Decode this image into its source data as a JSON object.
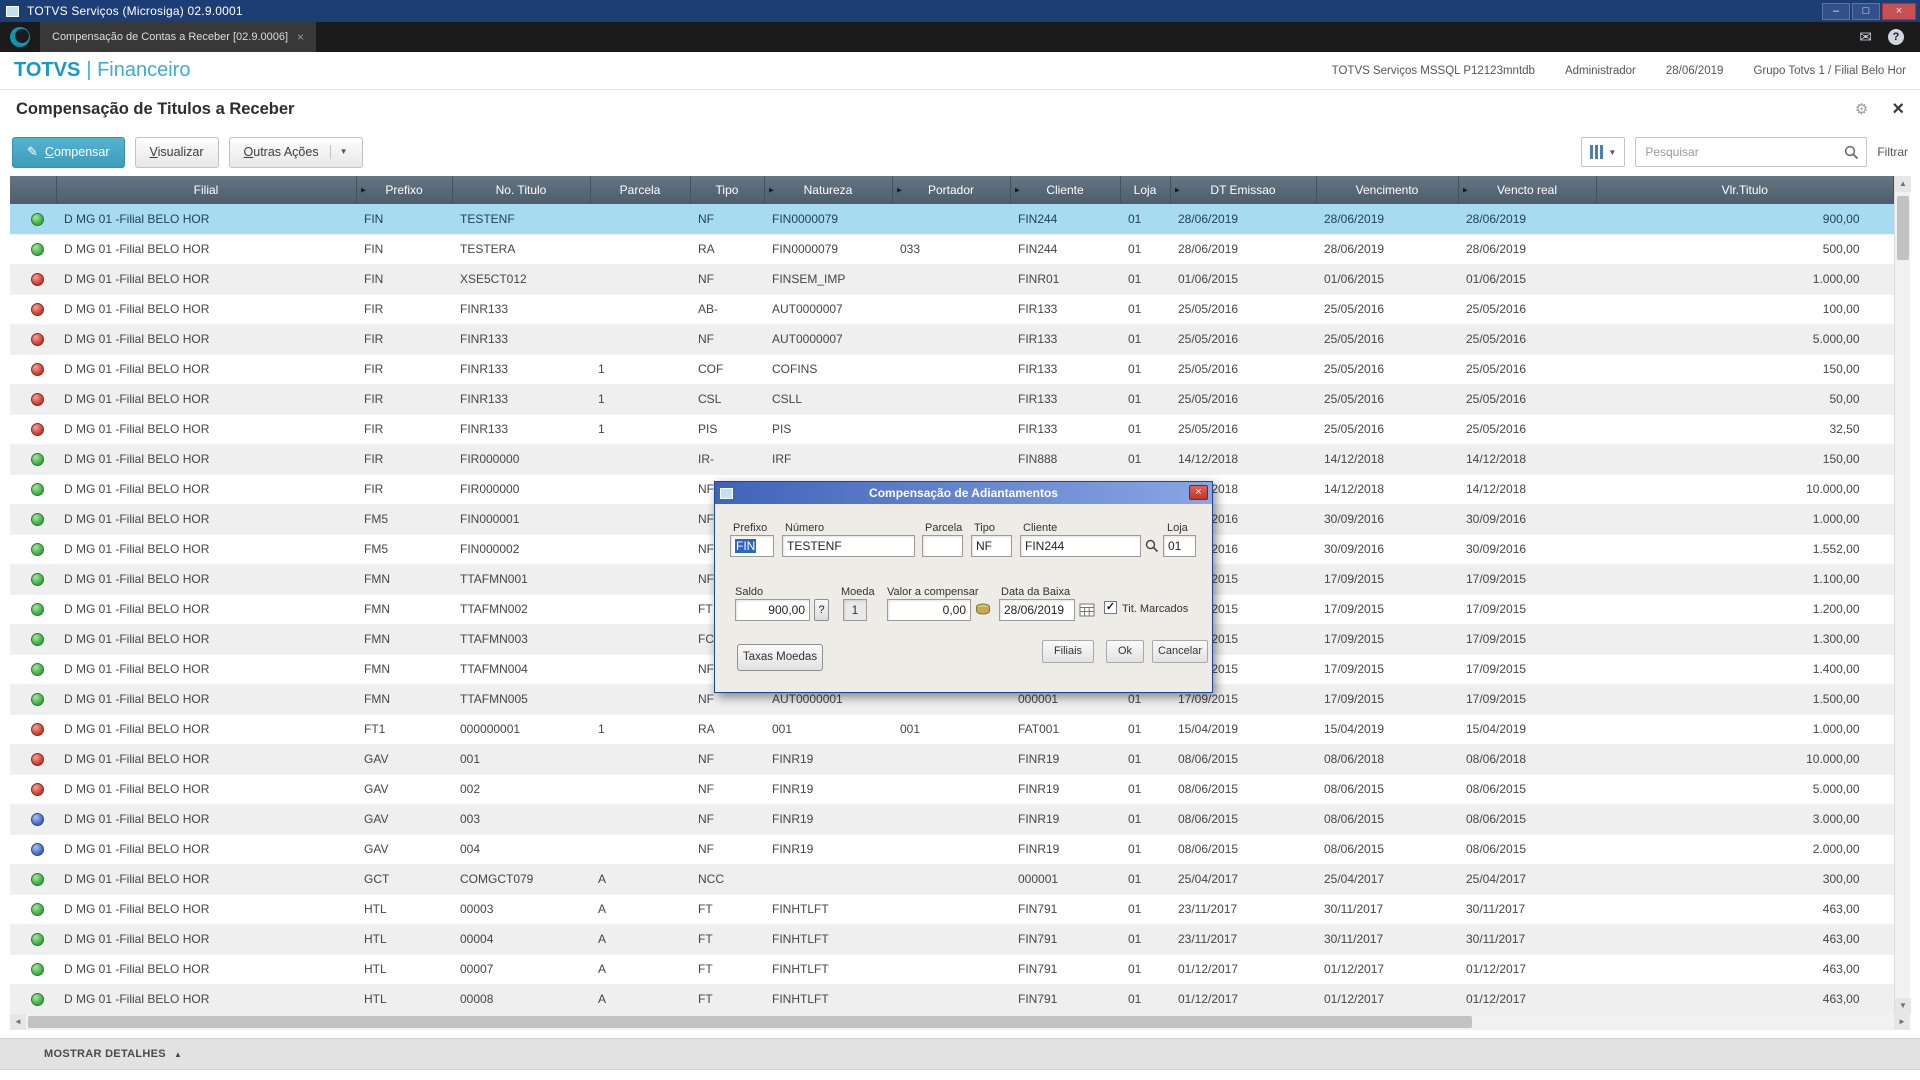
{
  "window": {
    "title": "TOTVS Serviços (Microsiga) 02.9.0001",
    "minimize": "–",
    "maximize": "□",
    "close": "×"
  },
  "tabbar": {
    "tab_label": "Compensação de Contas a Receber [02.9.0006]",
    "tab_close": "×"
  },
  "app_header": {
    "brand_main": "TOTVS",
    "brand_sub": "| Financeiro",
    "environment": "TOTVS Serviços MSSQL P12123mntdb",
    "user": "Administrador",
    "date": "28/06/2019",
    "branch": "Grupo Totvs 1 / Filial Belo Hor"
  },
  "page": {
    "title": "Compensação de Titulos a Receber"
  },
  "toolbar": {
    "compensar": "Compensar",
    "visualizar": "Visualizar",
    "outras_acoes": "Outras Ações",
    "search_placeholder": "Pesquisar",
    "filtrar": "Filtrar"
  },
  "icons": {
    "pencil": "✎",
    "caret": "▼",
    "header_arrow": "►",
    "up": "▲",
    "down": "▼",
    "left": "◄",
    "right": "►",
    "check": "✓",
    "gear": "⚙",
    "mail": "✉",
    "help": "?",
    "collapse": "▲",
    "question": "?"
  },
  "table": {
    "column_ids": [
      "status",
      "filial",
      "prefixo",
      "no-titulo",
      "parcela",
      "tipo",
      "natureza",
      "portador",
      "cliente",
      "loja",
      "dt-emissao",
      "vencimento",
      "vencto-real",
      "vlr-titulo"
    ],
    "columns": [
      {
        "label": "",
        "arrow": false
      },
      {
        "label": "Filial",
        "arrow": false
      },
      {
        "label": "Prefixo",
        "arrow": true
      },
      {
        "label": "No. Titulo",
        "arrow": false
      },
      {
        "label": "Parcela",
        "arrow": false
      },
      {
        "label": "Tipo",
        "arrow": false
      },
      {
        "label": "Natureza",
        "arrow": true
      },
      {
        "label": "Portador",
        "arrow": true
      },
      {
        "label": "Cliente",
        "arrow": true
      },
      {
        "label": "Loja",
        "arrow": false
      },
      {
        "label": "DT Emissao",
        "arrow": true
      },
      {
        "label": "Vencimento",
        "arrow": false
      },
      {
        "label": "Vencto real",
        "arrow": true
      },
      {
        "label": "Vlr.Titulo",
        "arrow": false
      }
    ],
    "rows": [
      {
        "status": "green",
        "selected": true,
        "cells": [
          "D MG 01 -Filial BELO HOR",
          "FIN",
          "TESTENF",
          "",
          "NF",
          "FIN0000079",
          "",
          "FIN244",
          "01",
          "28/06/2019",
          "28/06/2019",
          "28/06/2019",
          "900,00"
        ]
      },
      {
        "status": "green",
        "cells": [
          "D MG 01 -Filial BELO HOR",
          "FIN",
          "TESTERA",
          "",
          "RA",
          "FIN0000079",
          "033",
          "FIN244",
          "01",
          "28/06/2019",
          "28/06/2019",
          "28/06/2019",
          "500,00"
        ]
      },
      {
        "status": "red",
        "cells": [
          "D MG 01 -Filial BELO HOR",
          "FIN",
          "XSE5CT012",
          "",
          "NF",
          "FINSEM_IMP",
          "",
          "FINR01",
          "01",
          "01/06/2015",
          "01/06/2015",
          "01/06/2015",
          "1.000,00"
        ]
      },
      {
        "status": "red",
        "cells": [
          "D MG 01 -Filial BELO HOR",
          "FIR",
          "FINR133",
          "",
          "AB-",
          "AUT0000007",
          "",
          "FIR133",
          "01",
          "25/05/2016",
          "25/05/2016",
          "25/05/2016",
          "100,00"
        ]
      },
      {
        "status": "red",
        "cells": [
          "D MG 01 -Filial BELO HOR",
          "FIR",
          "FINR133",
          "",
          "NF",
          "AUT0000007",
          "",
          "FIR133",
          "01",
          "25/05/2016",
          "25/05/2016",
          "25/05/2016",
          "5.000,00"
        ]
      },
      {
        "status": "red",
        "cells": [
          "D MG 01 -Filial BELO HOR",
          "FIR",
          "FINR133",
          "1",
          "COF",
          "COFINS",
          "",
          "FIR133",
          "01",
          "25/05/2016",
          "25/05/2016",
          "25/05/2016",
          "150,00"
        ]
      },
      {
        "status": "red",
        "cells": [
          "D MG 01 -Filial BELO HOR",
          "FIR",
          "FINR133",
          "1",
          "CSL",
          "CSLL",
          "",
          "FIR133",
          "01",
          "25/05/2016",
          "25/05/2016",
          "25/05/2016",
          "50,00"
        ]
      },
      {
        "status": "red",
        "cells": [
          "D MG 01 -Filial BELO HOR",
          "FIR",
          "FINR133",
          "1",
          "PIS",
          "PIS",
          "",
          "FIR133",
          "01",
          "25/05/2016",
          "25/05/2016",
          "25/05/2016",
          "32,50"
        ]
      },
      {
        "status": "green",
        "cells": [
          "D MG 01 -Filial BELO HOR",
          "FIR",
          "FIR000000",
          "",
          "IR-",
          "IRF",
          "",
          "FIN888",
          "01",
          "14/12/2018",
          "14/12/2018",
          "14/12/2018",
          "150,00"
        ]
      },
      {
        "status": "green",
        "cells": [
          "D MG 01 -Filial BELO HOR",
          "FIR",
          "FIR000000",
          "",
          "NF",
          "",
          "",
          "",
          "",
          "14/12/2018",
          "14/12/2018",
          "14/12/2018",
          "10.000,00"
        ]
      },
      {
        "status": "green",
        "cells": [
          "D MG 01 -Filial BELO HOR",
          "FM5",
          "FIN000001",
          "",
          "NF",
          "",
          "",
          "",
          "",
          "30/09/2016",
          "30/09/2016",
          "30/09/2016",
          "1.000,00"
        ]
      },
      {
        "status": "green",
        "cells": [
          "D MG 01 -Filial BELO HOR",
          "FM5",
          "FIN000002",
          "",
          "NF",
          "",
          "",
          "",
          "",
          "30/09/2016",
          "30/09/2016",
          "30/09/2016",
          "1.552,00"
        ]
      },
      {
        "status": "green",
        "cells": [
          "D MG 01 -Filial BELO HOR",
          "FMN",
          "TTAFMN001",
          "",
          "NF",
          "",
          "",
          "",
          "",
          "17/09/2015",
          "17/09/2015",
          "17/09/2015",
          "1.100,00"
        ]
      },
      {
        "status": "green",
        "cells": [
          "D MG 01 -Filial BELO HOR",
          "FMN",
          "TTAFMN002",
          "",
          "FT",
          "",
          "",
          "",
          "",
          "17/09/2015",
          "17/09/2015",
          "17/09/2015",
          "1.200,00"
        ]
      },
      {
        "status": "green",
        "cells": [
          "D MG 01 -Filial BELO HOR",
          "FMN",
          "TTAFMN003",
          "",
          "FC",
          "",
          "",
          "",
          "",
          "17/09/2015",
          "17/09/2015",
          "17/09/2015",
          "1.300,00"
        ]
      },
      {
        "status": "green",
        "cells": [
          "D MG 01 -Filial BELO HOR",
          "FMN",
          "TTAFMN004",
          "",
          "NF",
          "",
          "",
          "",
          "",
          "17/09/2015",
          "17/09/2015",
          "17/09/2015",
          "1.400,00"
        ]
      },
      {
        "status": "green",
        "cells": [
          "D MG 01 -Filial BELO HOR",
          "FMN",
          "TTAFMN005",
          "",
          "NF",
          "AUT0000001",
          "",
          "000001",
          "01",
          "17/09/2015",
          "17/09/2015",
          "17/09/2015",
          "1.500,00"
        ]
      },
      {
        "status": "red",
        "cells": [
          "D MG 01 -Filial BELO HOR",
          "FT1",
          "000000001",
          "1",
          "RA",
          "001",
          "001",
          "FAT001",
          "01",
          "15/04/2019",
          "15/04/2019",
          "15/04/2019",
          "1.000,00"
        ]
      },
      {
        "status": "red",
        "cells": [
          "D MG 01 -Filial BELO HOR",
          "GAV",
          "001",
          "",
          "NF",
          "FINR19",
          "",
          "FINR19",
          "01",
          "08/06/2015",
          "08/06/2018",
          "08/06/2018",
          "10.000,00"
        ]
      },
      {
        "status": "red",
        "cells": [
          "D MG 01 -Filial BELO HOR",
          "GAV",
          "002",
          "",
          "NF",
          "FINR19",
          "",
          "FINR19",
          "01",
          "08/06/2015",
          "08/06/2015",
          "08/06/2015",
          "5.000,00"
        ]
      },
      {
        "status": "blue",
        "cells": [
          "D MG 01 -Filial BELO HOR",
          "GAV",
          "003",
          "",
          "NF",
          "FINR19",
          "",
          "FINR19",
          "01",
          "08/06/2015",
          "08/06/2015",
          "08/06/2015",
          "3.000,00"
        ]
      },
      {
        "status": "blue",
        "cells": [
          "D MG 01 -Filial BELO HOR",
          "GAV",
          "004",
          "",
          "NF",
          "FINR19",
          "",
          "FINR19",
          "01",
          "08/06/2015",
          "08/06/2015",
          "08/06/2015",
          "2.000,00"
        ]
      },
      {
        "status": "green",
        "cells": [
          "D MG 01 -Filial BELO HOR",
          "GCT",
          "COMGCT079",
          "A",
          "NCC",
          "",
          "",
          "000001",
          "01",
          "25/04/2017",
          "25/04/2017",
          "25/04/2017",
          "300,00"
        ]
      },
      {
        "status": "green",
        "cells": [
          "D MG 01 -Filial BELO HOR",
          "HTL",
          "00003",
          "A",
          "FT",
          "FINHTLFT",
          "",
          "FIN791",
          "01",
          "23/11/2017",
          "30/11/2017",
          "30/11/2017",
          "463,00"
        ]
      },
      {
        "status": "green",
        "cells": [
          "D MG 01 -Filial BELO HOR",
          "HTL",
          "00004",
          "A",
          "FT",
          "FINHTLFT",
          "",
          "FIN791",
          "01",
          "23/11/2017",
          "30/11/2017",
          "30/11/2017",
          "463,00"
        ]
      },
      {
        "status": "green",
        "cells": [
          "D MG 01 -Filial BELO HOR",
          "HTL",
          "00007",
          "A",
          "FT",
          "FINHTLFT",
          "",
          "FIN791",
          "01",
          "01/12/2017",
          "01/12/2017",
          "01/12/2017",
          "463,00"
        ]
      },
      {
        "status": "green",
        "cells": [
          "D MG 01 -Filial BELO HOR",
          "HTL",
          "00008",
          "A",
          "FT",
          "FINHTLFT",
          "",
          "FIN791",
          "01",
          "01/12/2017",
          "01/12/2017",
          "01/12/2017",
          "463,00"
        ]
      }
    ]
  },
  "footer": {
    "mostrar_detalhes": "MOSTRAR DETALHES"
  },
  "dialog": {
    "title": "Compensação de Adiantamentos",
    "close": "×",
    "fields": {
      "prefixo": {
        "label": "Prefixo",
        "value": "FIN"
      },
      "numero": {
        "label": "Número",
        "value": "TESTENF"
      },
      "parcela": {
        "label": "Parcela",
        "value": ""
      },
      "tipo": {
        "label": "Tipo",
        "value": "NF"
      },
      "cliente": {
        "label": "Cliente",
        "value": "FIN244"
      },
      "loja": {
        "label": "Loja",
        "value": "01"
      },
      "saldo": {
        "label": "Saldo",
        "value": "900,00"
      },
      "moeda": {
        "label": "Moeda",
        "value": "1"
      },
      "valor": {
        "label": "Valor a compensar",
        "value": "0,00"
      },
      "data": {
        "label": "Data da Baixa",
        "value": "28/06/2019"
      },
      "marcados": {
        "label": "Tit. Marcados",
        "checked": true
      }
    },
    "buttons": {
      "taxas": "Taxas Moedas",
      "filiais": "Filiais",
      "ok": "Ok",
      "cancelar": "Cancelar"
    }
  }
}
